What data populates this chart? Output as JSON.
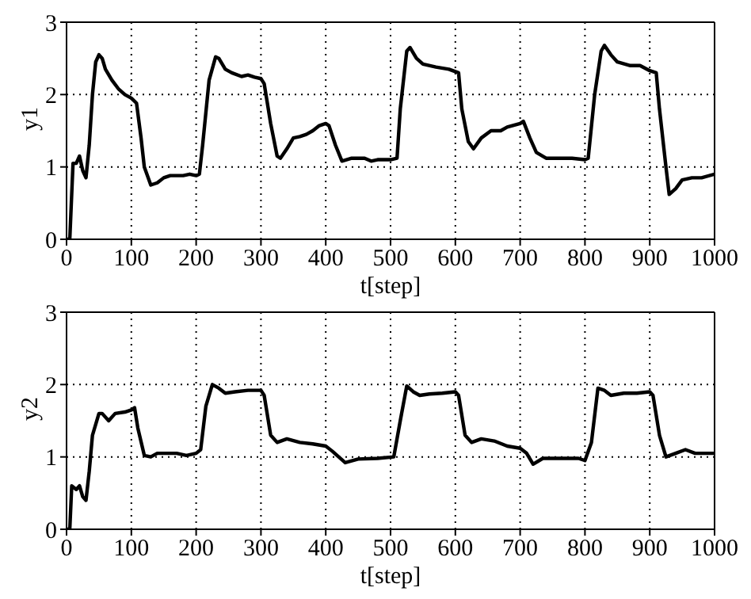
{
  "chart_data": [
    {
      "type": "line",
      "xlabel": "t[step]",
      "ylabel": "y1",
      "xlim": [
        0,
        1000
      ],
      "xticks": [
        0,
        100,
        200,
        300,
        400,
        500,
        600,
        700,
        800,
        900,
        1000
      ],
      "ylim": [
        0,
        3
      ],
      "yticks": [
        0,
        1,
        2,
        3
      ],
      "grid": true,
      "marker": "none",
      "line_style": "solid",
      "x": [
        0,
        5,
        10,
        15,
        20,
        25,
        30,
        35,
        40,
        45,
        50,
        55,
        60,
        70,
        80,
        90,
        100,
        108,
        115,
        120,
        130,
        140,
        150,
        160,
        180,
        190,
        200,
        205,
        210,
        220,
        230,
        235,
        245,
        255,
        270,
        280,
        290,
        300,
        305,
        315,
        325,
        330,
        340,
        350,
        360,
        370,
        380,
        390,
        400,
        405,
        415,
        425,
        440,
        460,
        470,
        480,
        500,
        510,
        515,
        525,
        530,
        540,
        550,
        570,
        590,
        605,
        610,
        620,
        628,
        640,
        655,
        670,
        680,
        700,
        705,
        715,
        725,
        740,
        760,
        780,
        800,
        805,
        815,
        825,
        830,
        840,
        850,
        870,
        885,
        900,
        910,
        915,
        925,
        930,
        940,
        950,
        965,
        980,
        1000
      ],
      "series": [
        {
          "color": "#000000",
          "values": [
            0,
            0,
            1.05,
            1.05,
            1.15,
            0.95,
            0.85,
            1.3,
            2.0,
            2.45,
            2.55,
            2.5,
            2.35,
            2.2,
            2.08,
            2.0,
            1.95,
            1.88,
            1.4,
            1.0,
            0.75,
            0.78,
            0.85,
            0.88,
            0.88,
            0.9,
            0.88,
            0.9,
            1.3,
            2.2,
            2.52,
            2.5,
            2.35,
            2.3,
            2.25,
            2.27,
            2.24,
            2.22,
            2.15,
            1.6,
            1.15,
            1.12,
            1.25,
            1.4,
            1.42,
            1.45,
            1.5,
            1.57,
            1.6,
            1.57,
            1.3,
            1.08,
            1.12,
            1.12,
            1.08,
            1.1,
            1.1,
            1.12,
            1.8,
            2.6,
            2.65,
            2.5,
            2.42,
            2.38,
            2.35,
            2.3,
            1.8,
            1.35,
            1.25,
            1.4,
            1.5,
            1.5,
            1.55,
            1.6,
            1.63,
            1.4,
            1.2,
            1.12,
            1.12,
            1.12,
            1.1,
            1.12,
            2.0,
            2.6,
            2.68,
            2.55,
            2.45,
            2.4,
            2.4,
            2.33,
            2.3,
            1.8,
            1.0,
            0.62,
            0.7,
            0.82,
            0.85,
            0.85,
            0.9
          ]
        }
      ]
    },
    {
      "type": "line",
      "xlabel": "t[step]",
      "ylabel": "y2",
      "xlim": [
        0,
        1000
      ],
      "xticks": [
        0,
        100,
        200,
        300,
        400,
        500,
        600,
        700,
        800,
        900,
        1000
      ],
      "ylim": [
        0,
        3
      ],
      "yticks": [
        0,
        1,
        2,
        3
      ],
      "grid": true,
      "marker": "none",
      "line_style": "solid",
      "x": [
        0,
        5,
        8,
        15,
        20,
        25,
        30,
        35,
        40,
        50,
        55,
        65,
        75,
        90,
        100,
        105,
        110,
        120,
        130,
        140,
        150,
        170,
        185,
        200,
        207,
        215,
        225,
        235,
        245,
        260,
        280,
        300,
        305,
        315,
        325,
        340,
        360,
        380,
        400,
        410,
        430,
        450,
        480,
        505,
        515,
        525,
        535,
        545,
        560,
        580,
        600,
        605,
        615,
        625,
        640,
        660,
        680,
        700,
        710,
        720,
        735,
        760,
        790,
        800,
        810,
        820,
        830,
        840,
        860,
        880,
        900,
        905,
        915,
        925,
        940,
        955,
        970,
        1000
      ],
      "series": [
        {
          "color": "#000000",
          "values": [
            0,
            0,
            0.6,
            0.55,
            0.6,
            0.45,
            0.4,
            0.8,
            1.3,
            1.6,
            1.6,
            1.5,
            1.6,
            1.62,
            1.65,
            1.68,
            1.4,
            1.02,
            1.0,
            1.05,
            1.05,
            1.05,
            1.02,
            1.05,
            1.1,
            1.7,
            2.0,
            1.95,
            1.88,
            1.9,
            1.92,
            1.92,
            1.85,
            1.3,
            1.2,
            1.25,
            1.2,
            1.18,
            1.15,
            1.08,
            0.92,
            0.97,
            0.98,
            1.0,
            1.5,
            1.98,
            1.9,
            1.85,
            1.87,
            1.88,
            1.9,
            1.85,
            1.3,
            1.2,
            1.25,
            1.22,
            1.15,
            1.12,
            1.05,
            0.9,
            0.98,
            0.98,
            0.98,
            0.95,
            1.2,
            1.95,
            1.92,
            1.85,
            1.88,
            1.88,
            1.9,
            1.85,
            1.3,
            1.0,
            1.05,
            1.1,
            1.05,
            1.05
          ]
        }
      ]
    }
  ]
}
